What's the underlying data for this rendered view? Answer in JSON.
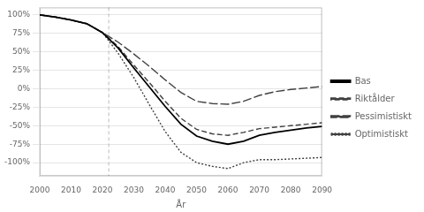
{
  "chart_data": {
    "type": "line",
    "xlabel": "År",
    "x": [
      2000,
      2005,
      2010,
      2015,
      2020,
      2025,
      2030,
      2035,
      2040,
      2045,
      2050,
      2055,
      2060,
      2065,
      2070,
      2075,
      2080,
      2085,
      2090
    ],
    "series": [
      {
        "name": "Bas",
        "color": "#000000",
        "line_style": "solid",
        "values": [
          1.0,
          0.97,
          0.93,
          0.88,
          0.76,
          0.55,
          0.28,
          0.02,
          -0.24,
          -0.48,
          -0.64,
          -0.71,
          -0.75,
          -0.71,
          -0.63,
          -0.59,
          -0.56,
          -0.53,
          -0.51
        ]
      },
      {
        "name": "Riktålder",
        "color": "#404040",
        "line_style": "dashed",
        "values": [
          1.0,
          0.97,
          0.93,
          0.88,
          0.76,
          0.57,
          0.32,
          0.08,
          -0.17,
          -0.4,
          -0.55,
          -0.61,
          -0.63,
          -0.59,
          -0.54,
          -0.52,
          -0.5,
          -0.48,
          -0.46
        ]
      },
      {
        "name": "Pessimistiskt",
        "color": "#404040",
        "line_style": "long_dashed",
        "values": [
          1.0,
          0.97,
          0.93,
          0.88,
          0.76,
          0.63,
          0.47,
          0.3,
          0.12,
          -0.05,
          -0.17,
          -0.2,
          -0.21,
          -0.17,
          -0.09,
          -0.04,
          -0.01,
          0.01,
          0.03
        ]
      },
      {
        "name": "Optimistiskt",
        "color": "#404040",
        "line_style": "dotted",
        "values": [
          1.0,
          0.97,
          0.93,
          0.88,
          0.76,
          0.48,
          0.15,
          -0.22,
          -0.58,
          -0.86,
          -1.0,
          -1.05,
          -1.08,
          -1.0,
          -0.96,
          -0.96,
          -0.95,
          -0.94,
          -0.93
        ]
      }
    ],
    "xlim": [
      2000,
      2090
    ],
    "xticks": [
      2000,
      2010,
      2020,
      2030,
      2040,
      2050,
      2060,
      2070,
      2080,
      2090
    ],
    "ylim": [
      -1.18,
      1.1
    ],
    "yticks": [
      {
        "value": -1.0,
        "label": "-100%"
      },
      {
        "value": -0.75,
        "label": "-75%"
      },
      {
        "value": -0.5,
        "label": "-50%"
      },
      {
        "value": -0.25,
        "label": "-25%"
      },
      {
        "value": 0.0,
        "label": "0%"
      },
      {
        "value": 0.25,
        "label": "25%"
      },
      {
        "value": 0.5,
        "label": "50%"
      },
      {
        "value": 0.75,
        "label": "75%"
      },
      {
        "value": 1.0,
        "label": "100%"
      }
    ],
    "grid": "y",
    "legend": "right",
    "vertical_line": 2022
  }
}
